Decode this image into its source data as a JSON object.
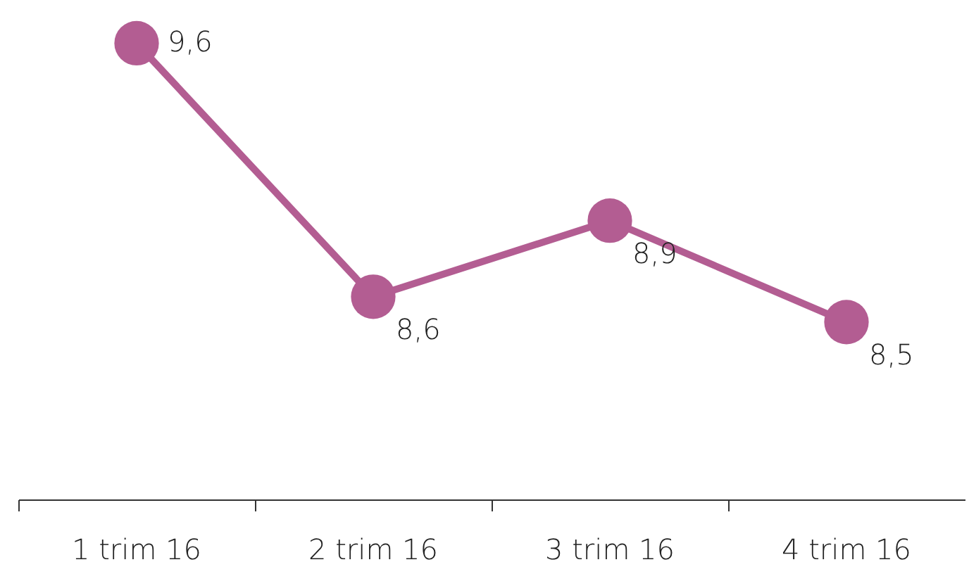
{
  "chart_data": {
    "type": "line",
    "categories": [
      "1 trim 16",
      "2 trim 16",
      "3 trim 16",
      "4 trim 16"
    ],
    "series": [
      {
        "color": "#b35d92",
        "values": [
          9.6,
          8.6,
          8.9,
          8.5
        ],
        "value_labels": [
          "9,6",
          "8,6",
          "8,9",
          "8,5"
        ]
      }
    ],
    "marker": "circle",
    "line_style": "solid"
  }
}
